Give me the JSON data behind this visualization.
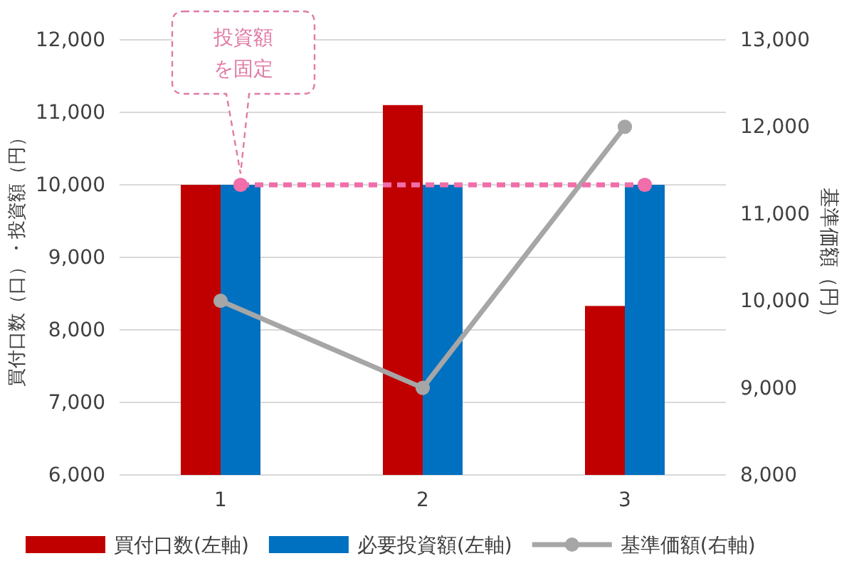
{
  "chart_data": {
    "type": "bar",
    "categories": [
      "1",
      "2",
      "3"
    ],
    "ylabel": "買付口数（口）・投資額（円）",
    "y2label": "基準価額（円）",
    "ylim": [
      6000,
      12000
    ],
    "yticks": [
      {
        "value": 6000,
        "label": "6,000"
      },
      {
        "value": 7000,
        "label": "7,000"
      },
      {
        "value": 8000,
        "label": "8,000"
      },
      {
        "value": 9000,
        "label": "9,000"
      },
      {
        "value": 10000,
        "label": "10,000"
      },
      {
        "value": 11000,
        "label": "11,000"
      },
      {
        "value": 12000,
        "label": "12,000"
      }
    ],
    "y2lim": [
      8000,
      13000
    ],
    "y2ticks": [
      {
        "value": 8000,
        "label": "8,000"
      },
      {
        "value": 9000,
        "label": "9,000"
      },
      {
        "value": 10000,
        "label": "10,000"
      },
      {
        "value": 11000,
        "label": "11,000"
      },
      {
        "value": 12000,
        "label": "12,000"
      },
      {
        "value": 13000,
        "label": "13,000"
      }
    ],
    "grid": "y",
    "legend": "bottom",
    "series": [
      {
        "name": "買付口数(左軸)",
        "color": "#c00000",
        "values": [
          10000,
          11100,
          8330
        ]
      },
      {
        "name": "必要投資額(左軸)",
        "color": "#0070c0",
        "values": [
          10000,
          10000,
          10000
        ]
      },
      {
        "name": "基準価額(右軸)",
        "type": "line",
        "axis": "y2",
        "color": "#a6a6a6",
        "marker": "circle",
        "values": [
          10000,
          9000,
          12000
        ]
      },
      {
        "type": "line",
        "x": [
          "1",
          "3"
        ],
        "color": "#f06eaa",
        "marker": "circle",
        "line_style": "dashed",
        "values": [
          10000,
          10000
        ]
      }
    ],
    "annotations": [
      "投資額を固定"
    ]
  }
}
